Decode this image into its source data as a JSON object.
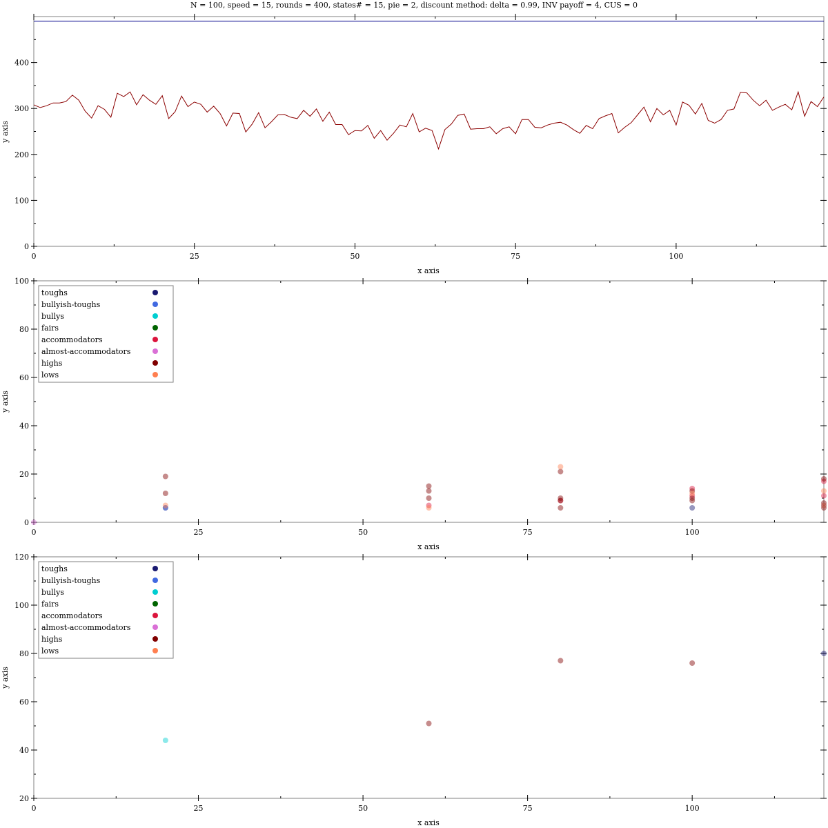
{
  "title": "N = 100, speed = 15, rounds = 400, states# = 15, pie = 2, discount method: delta = 0.99, INV payoff = 4, CUS = 0",
  "chart_data": [
    {
      "type": "line",
      "xlabel": "x axis",
      "ylabel": "y axis",
      "xlim": [
        0,
        123
      ],
      "ylim": [
        0,
        500
      ],
      "xticks": [
        0,
        25,
        50,
        75,
        100
      ],
      "yticks": [
        0,
        100,
        200,
        300,
        400
      ],
      "grid": false,
      "series": [
        {
          "color": "#00008b",
          "x": [
            0,
            123
          ],
          "values": [
            490,
            490
          ]
        },
        {
          "color": "#8b0000",
          "x": [
            0,
            1,
            2,
            3,
            4,
            5,
            6,
            7,
            8,
            9,
            10,
            11,
            12,
            13,
            14,
            15,
            16,
            17,
            18,
            19,
            20,
            21,
            22,
            23,
            24,
            25,
            26,
            27,
            28,
            29,
            30,
            31,
            32,
            33,
            34,
            35,
            36,
            37,
            38,
            39,
            40,
            41,
            42,
            43,
            44,
            45,
            46,
            47,
            48,
            49,
            50,
            51,
            52,
            53,
            54,
            55,
            56,
            57,
            58,
            59,
            60,
            61,
            62,
            63,
            64,
            65,
            66,
            67,
            68,
            69,
            70,
            71,
            72,
            73,
            74,
            75,
            76,
            77,
            78,
            79,
            80,
            81,
            82,
            83,
            84,
            85,
            86,
            87,
            88,
            89,
            90,
            91,
            92,
            93,
            94,
            95,
            96,
            97,
            98,
            99,
            100,
            101,
            102,
            103,
            104,
            105,
            106,
            107,
            108,
            109,
            110,
            111,
            112,
            113,
            114,
            115,
            116,
            117,
            118,
            119,
            120,
            121,
            122,
            123
          ],
          "values": [
            308,
            302,
            306,
            312,
            312,
            315,
            329,
            318,
            294,
            279,
            306,
            298,
            281,
            333,
            326,
            336,
            308,
            330,
            318,
            309,
            328,
            278,
            293,
            327,
            304,
            314,
            309,
            292,
            305,
            289,
            262,
            290,
            289,
            249,
            266,
            291,
            258,
            271,
            286,
            287,
            281,
            278,
            296,
            283,
            299,
            272,
            292,
            265,
            265,
            243,
            252,
            251,
            263,
            235,
            252,
            231,
            246,
            264,
            260,
            289,
            249,
            257,
            252,
            212,
            254,
            266,
            285,
            288,
            255,
            256,
            256,
            260,
            245,
            256,
            260,
            245,
            276,
            276,
            259,
            258,
            264,
            268,
            270,
            264,
            254,
            246,
            263,
            256,
            278,
            284,
            289,
            247,
            259,
            269,
            286,
            303,
            271,
            300,
            286,
            296,
            264,
            314,
            307,
            288,
            311,
            274,
            268,
            276,
            296,
            299,
            335,
            334,
            318,
            306,
            318,
            296,
            303,
            309,
            297,
            336,
            283,
            315,
            304,
            325
          ]
        }
      ]
    },
    {
      "type": "scatter",
      "xlabel": "x axis",
      "ylabel": "y axis",
      "xlim": [
        0,
        120
      ],
      "ylim": [
        0,
        100
      ],
      "xticks": [
        0,
        25,
        50,
        75,
        100
      ],
      "yticks": [
        0,
        20,
        40,
        60,
        80,
        100
      ],
      "grid": false,
      "legend": "top-left",
      "legend_entries": [
        "toughs",
        "bullyish-toughs",
        "bullys",
        "fairs",
        "accommodators",
        "almost-accommodators",
        "highs",
        "lows"
      ],
      "legend_colors": [
        "#191970",
        "#4169e1",
        "#00ced1",
        "#006400",
        "#dc143c",
        "#da70d6",
        "#800000",
        "#ff7f50"
      ],
      "series": [
        {
          "name": "toughs",
          "x": [
            20,
            100,
            120
          ],
          "values": [
            6,
            6,
            7
          ]
        },
        {
          "name": "bullyish-toughs",
          "x": [
            20
          ],
          "values": [
            6
          ]
        },
        {
          "name": "bullys",
          "x": [],
          "values": []
        },
        {
          "name": "fairs",
          "x": [],
          "values": []
        },
        {
          "name": "accommodators",
          "x": [
            60,
            80,
            100,
            100,
            120,
            120
          ],
          "values": [
            7,
            9,
            14,
            11,
            11,
            17
          ]
        },
        {
          "name": "almost-accommodators",
          "x": [
            0
          ],
          "values": [
            0
          ]
        },
        {
          "name": "highs",
          "x": [
            20,
            20,
            60,
            60,
            60,
            80,
            80,
            80,
            80,
            100,
            100,
            100,
            120,
            120,
            120
          ],
          "values": [
            19,
            12,
            15,
            13,
            10,
            21,
            10,
            9,
            6,
            13,
            10,
            9,
            18,
            8,
            6
          ]
        },
        {
          "name": "lows",
          "x": [
            20,
            60,
            80,
            100,
            120,
            120
          ],
          "values": [
            7,
            6,
            23,
            12,
            13,
            7
          ]
        }
      ]
    },
    {
      "type": "scatter",
      "xlabel": "x axis",
      "ylabel": "y axis",
      "xlim": [
        0,
        120
      ],
      "ylim": [
        20,
        120
      ],
      "xticks": [
        0,
        25,
        50,
        75,
        100
      ],
      "yticks": [
        20,
        40,
        60,
        80,
        100,
        120
      ],
      "grid": false,
      "legend": "top-left",
      "legend_entries": [
        "toughs",
        "bullyish-toughs",
        "bullys",
        "fairs",
        "accommodators",
        "almost-accommodators",
        "highs",
        "lows"
      ],
      "legend_colors": [
        "#191970",
        "#4169e1",
        "#00ced1",
        "#006400",
        "#dc143c",
        "#da70d6",
        "#800000",
        "#ff7f50"
      ],
      "series": [
        {
          "name": "toughs",
          "x": [
            120
          ],
          "values": [
            80
          ]
        },
        {
          "name": "bullyish-toughs",
          "x": [],
          "values": []
        },
        {
          "name": "bullys",
          "x": [
            20
          ],
          "values": [
            44
          ]
        },
        {
          "name": "fairs",
          "x": [],
          "values": []
        },
        {
          "name": "accommodators",
          "x": [],
          "values": []
        },
        {
          "name": "almost-accommodators",
          "x": [],
          "values": []
        },
        {
          "name": "highs",
          "x": [
            60,
            80,
            100
          ],
          "values": [
            51,
            77,
            76
          ]
        },
        {
          "name": "lows",
          "x": [],
          "values": []
        }
      ]
    }
  ]
}
